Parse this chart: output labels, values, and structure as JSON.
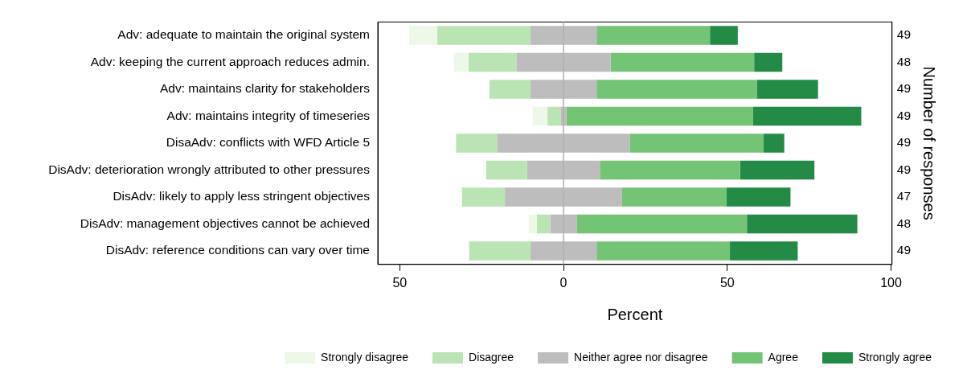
{
  "chart_data": {
    "type": "bar",
    "orientation": "horizontal",
    "categories": [
      "Adv: adequate to maintain the original system",
      "Adv: keeping the current approach reduces admin.",
      "Adv: maintains clarity for stakeholders",
      "Adv: maintains integrity of timeseries",
      "DisaAdv: conflicts with WFD Article 5",
      "DisAdv: deterioration wrongly attributed to other pressures",
      "DisAdv: likely to apply less stringent objectives",
      "DisAdv: management objectives cannot be achieved",
      "DisAdv: reference conditions can vary over time"
    ],
    "series": [
      {
        "name": "Strongly disagree",
        "color": "#edf8e9",
        "base": [
          -47.1,
          -33.5,
          null,
          -9.4,
          null,
          null,
          null,
          -10.6,
          null
        ],
        "values": [
          8.5,
          4.5,
          null,
          4.5,
          null,
          null,
          null,
          2.5,
          null
        ]
      },
      {
        "name": "Disagree",
        "color": "#bae4b3",
        "base": [
          -38.6,
          -29.0,
          -22.6,
          -4.9,
          -32.8,
          -23.6,
          -31.0,
          -8.1,
          -28.8
        ],
        "values": [
          28.5,
          14.6,
          12.5,
          4.0,
          12.5,
          12.5,
          13.1,
          4.1,
          18.7
        ]
      },
      {
        "name": "Neither agree nor disagree",
        "color": "#bdbdbd",
        "base": [
          -10.1,
          -14.4,
          -10.1,
          -0.9,
          -20.3,
          -11.1,
          -17.9,
          -4.0,
          -10.1
        ],
        "values": [
          20.2,
          28.8,
          20.2,
          1.8,
          40.5,
          22.2,
          35.8,
          8.0,
          20.2
        ]
      },
      {
        "name": "Agree",
        "color": "#74c476",
        "base": [
          10.1,
          14.4,
          10.1,
          0.9,
          20.2,
          11.1,
          17.9,
          4.0,
          10.1
        ],
        "values": [
          34.6,
          43.8,
          48.9,
          57.0,
          40.9,
          42.8,
          31.9,
          52.0,
          40.7
        ]
      },
      {
        "name": "Strongly agree",
        "color": "#238b45",
        "base": [
          44.7,
          58.2,
          59.0,
          57.9,
          61.1,
          53.9,
          49.8,
          56.0,
          50.8
        ],
        "values": [
          8.5,
          8.6,
          18.7,
          33.0,
          6.3,
          22.7,
          19.5,
          33.7,
          20.7
        ]
      }
    ],
    "xlim": [
      -56.7,
      100.3
    ],
    "xticks": [
      {
        "value": -50,
        "label": "50"
      },
      0,
      50,
      100
    ],
    "xlabel": "Percent",
    "y2label": "Number of responses",
    "y2_categories": [
      "49",
      "48",
      "49",
      "49",
      "49",
      "49",
      "47",
      "48",
      "49"
    ],
    "ref_lines": [
      {
        "axis": "x",
        "value": 0,
        "label": null,
        "color": "#b0b0b0"
      }
    ],
    "grid": false,
    "legend": "bottom"
  }
}
